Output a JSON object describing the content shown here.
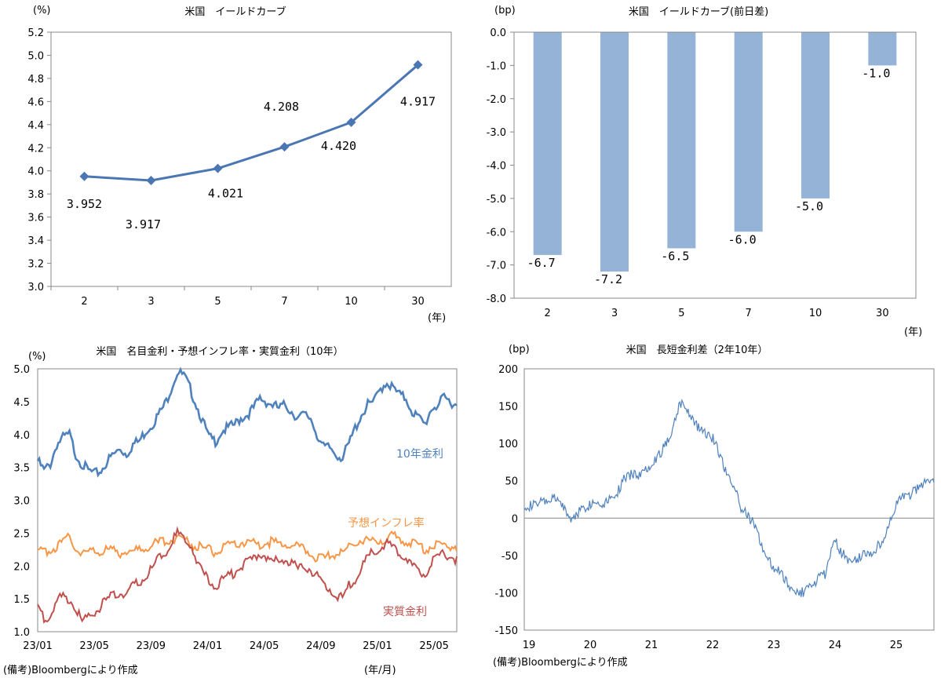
{
  "footer": {
    "note_left": "(備考)Bloombergにより作成",
    "note_right": "(備考)Bloombergにより作成",
    "unit_bottom": "(年/月)"
  },
  "chart_data": [
    {
      "type": "line",
      "title": "米国　イールドカーブ",
      "ylabel": "(%)",
      "xlabel": "(年)",
      "categories": [
        "2",
        "3",
        "5",
        "7",
        "10",
        "30"
      ],
      "values": [
        3.952,
        3.917,
        4.021,
        4.208,
        4.42,
        4.917
      ],
      "value_labels": [
        "3.952",
        "3.917",
        "4.021",
        "4.208",
        "4.420",
        "4.917"
      ],
      "ylim": [
        3.0,
        5.2
      ],
      "yticks": [
        "3.0",
        "3.2",
        "3.4",
        "3.6",
        "3.8",
        "4.0",
        "4.2",
        "4.4",
        "4.6",
        "4.8",
        "5.0",
        "5.2"
      ],
      "color": "#4a77b4"
    },
    {
      "type": "bar",
      "title": "米国　イールドカーブ(前日差)",
      "ylabel": "(bp)",
      "xlabel": "(年)",
      "categories": [
        "2",
        "3",
        "5",
        "7",
        "10",
        "30"
      ],
      "values": [
        -6.7,
        -7.2,
        -6.5,
        -6.0,
        -5.0,
        -1.0
      ],
      "value_labels": [
        "-6.7",
        "-7.2",
        "-6.5",
        "-6.0",
        "-5.0",
        "-1.0"
      ],
      "ylim": [
        -8.0,
        0.0
      ],
      "yticks": [
        "0.0",
        "-1.0",
        "-2.0",
        "-3.0",
        "-4.0",
        "-5.0",
        "-6.0",
        "-7.0",
        "-8.0"
      ],
      "color": "#95b3d7"
    },
    {
      "type": "line",
      "title": "米国　名目金利・予想インフレ率・実質金利（10年）",
      "ylabel": "(%)",
      "xlabel": "(年/月)",
      "ylim": [
        1.0,
        5.0
      ],
      "yticks": [
        "5.0",
        "4.5",
        "4.0",
        "3.5",
        "3.0",
        "2.5",
        "2.0",
        "1.5",
        "1.0"
      ],
      "xticks": [
        "23/01",
        "23/05",
        "23/09",
        "24/01",
        "24/05",
        "24/09",
        "25/01",
        "25/05"
      ],
      "series": [
        {
          "name": "10年金利",
          "color": "#4f81bd",
          "values": [
            3.6,
            3.45,
            3.55,
            3.85,
            3.95,
            4.0,
            3.7,
            3.55,
            3.45,
            3.4,
            3.45,
            3.6,
            3.7,
            3.78,
            3.7,
            3.85,
            3.9,
            4.05,
            4.15,
            4.3,
            4.45,
            4.7,
            4.95,
            4.9,
            4.7,
            4.45,
            4.2,
            3.95,
            3.9,
            4.05,
            4.1,
            4.15,
            4.25,
            4.3,
            4.4,
            4.55,
            4.5,
            4.45,
            4.4,
            4.45,
            4.35,
            4.25,
            4.3,
            4.25,
            4.0,
            3.8,
            3.8,
            3.7,
            3.65,
            3.85,
            4.1,
            4.3,
            4.45,
            4.5,
            4.7,
            4.8,
            4.7,
            4.6,
            4.55,
            4.35,
            4.25,
            4.15,
            4.4,
            4.45,
            4.55,
            4.5,
            4.45
          ]
        },
        {
          "name": "予想インフレ率",
          "color": "#f79646",
          "values": [
            2.2,
            2.22,
            2.25,
            2.3,
            2.35,
            2.45,
            2.28,
            2.2,
            2.2,
            2.25,
            2.22,
            2.25,
            2.22,
            2.2,
            2.25,
            2.22,
            2.25,
            2.3,
            2.32,
            2.35,
            2.38,
            2.4,
            2.45,
            2.42,
            2.35,
            2.3,
            2.28,
            2.25,
            2.2,
            2.25,
            2.3,
            2.32,
            2.35,
            2.38,
            2.35,
            2.32,
            2.35,
            2.38,
            2.3,
            2.35,
            2.32,
            2.28,
            2.25,
            2.2,
            2.12,
            2.1,
            2.15,
            2.2,
            2.18,
            2.3,
            2.35,
            2.42,
            2.38,
            2.35,
            2.4,
            2.42,
            2.45,
            2.4,
            2.38,
            2.35,
            2.32,
            2.25,
            2.3,
            2.35,
            2.32,
            2.3,
            2.3
          ]
        },
        {
          "name": "実質金利",
          "color": "#c0504d",
          "values": [
            1.4,
            1.2,
            1.25,
            1.45,
            1.55,
            1.5,
            1.35,
            1.15,
            1.2,
            1.3,
            1.4,
            1.5,
            1.55,
            1.6,
            1.55,
            1.7,
            1.75,
            1.85,
            1.95,
            2.1,
            2.2,
            2.35,
            2.5,
            2.4,
            2.35,
            2.1,
            1.9,
            1.75,
            1.7,
            1.8,
            1.85,
            1.9,
            2.0,
            2.05,
            2.1,
            2.2,
            2.15,
            2.05,
            2.1,
            2.1,
            2.05,
            1.95,
            2.0,
            1.95,
            1.85,
            1.7,
            1.65,
            1.55,
            1.5,
            1.7,
            1.8,
            1.95,
            2.15,
            2.2,
            2.3,
            2.35,
            2.25,
            2.2,
            2.15,
            2.0,
            1.95,
            1.85,
            2.05,
            2.1,
            2.2,
            2.15,
            2.1
          ]
        }
      ]
    },
    {
      "type": "line",
      "title": "米国　長短金利差（2年10年）",
      "ylabel": "(bp)",
      "ylim": [
        -150,
        200
      ],
      "yticks": [
        "200",
        "150",
        "100",
        "50",
        "0",
        "-50",
        "-100",
        "-150"
      ],
      "xticks": [
        "19",
        "20",
        "21",
        "22",
        "23",
        "24",
        "25"
      ],
      "series": [
        {
          "name": "長短金利差",
          "color": "#4f81bd",
          "values": [
            18,
            16,
            18,
            20,
            22,
            24,
            26,
            20,
            10,
            -3,
            5,
            12,
            15,
            20,
            22,
            18,
            25,
            30,
            35,
            50,
            55,
            60,
            58,
            62,
            70,
            78,
            85,
            95,
            110,
            130,
            155,
            150,
            140,
            125,
            120,
            115,
            110,
            100,
            80,
            60,
            50,
            30,
            10,
            5,
            -5,
            -20,
            -40,
            -55,
            -65,
            -70,
            -80,
            -90,
            -95,
            -100,
            -98,
            -90,
            -85,
            -80,
            -75,
            -50,
            -30,
            -45,
            -50,
            -60,
            -55,
            -50,
            -45,
            -48,
            -40,
            -30,
            -15,
            5,
            20,
            30,
            25,
            35,
            40,
            45,
            50,
            48
          ]
        }
      ]
    }
  ]
}
